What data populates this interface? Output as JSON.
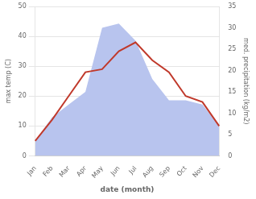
{
  "chart_data": {
    "type": "line",
    "categories": [
      "Jan",
      "Feb",
      "Mar",
      "Apr",
      "May",
      "Jun",
      "Jul",
      "Aug",
      "Sep",
      "Oct",
      "Nov",
      "Dec"
    ],
    "series": [
      {
        "type": "line",
        "color": "#c0392b",
        "values": [
          5,
          12,
          20,
          28,
          29,
          35,
          38,
          32,
          28,
          20,
          18,
          10
        ]
      },
      {
        "type": "area",
        "color": "#b8c4ee",
        "axis": "y2",
        "values": [
          3.5,
          9,
          12,
          15,
          30,
          31,
          27,
          18,
          13,
          13,
          12,
          7
        ]
      }
    ],
    "xlabel": "date (month)",
    "ylabel": "max temp (C)",
    "y2label": "med. precipitation (kg/m2)",
    "ylim": [
      0,
      50
    ],
    "yticks": [
      0,
      10,
      20,
      30,
      40,
      50
    ],
    "y2lim": [
      0,
      35
    ],
    "y2ticks": [
      0,
      5,
      10,
      15,
      20,
      25,
      30,
      35
    ],
    "grid": "y"
  }
}
